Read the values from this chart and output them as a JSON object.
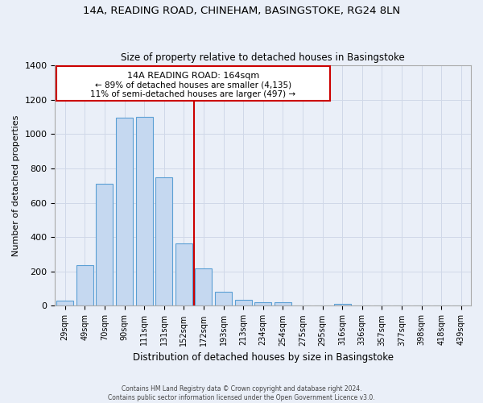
{
  "title_line1": "14A, READING ROAD, CHINEHAM, BASINGSTOKE, RG24 8LN",
  "title_line2": "Size of property relative to detached houses in Basingstoke",
  "xlabel": "Distribution of detached houses by size in Basingstoke",
  "ylabel": "Number of detached properties",
  "categories": [
    "29sqm",
    "49sqm",
    "70sqm",
    "90sqm",
    "111sqm",
    "131sqm",
    "152sqm",
    "172sqm",
    "193sqm",
    "213sqm",
    "234sqm",
    "254sqm",
    "275sqm",
    "295sqm",
    "316sqm",
    "336sqm",
    "357sqm",
    "377sqm",
    "398sqm",
    "418sqm",
    "439sqm"
  ],
  "values": [
    30,
    235,
    710,
    1095,
    1100,
    750,
    365,
    220,
    80,
    35,
    20,
    20,
    0,
    0,
    10,
    0,
    0,
    0,
    0,
    0,
    0
  ],
  "bar_color": "#c5d8f0",
  "bar_edge_color": "#5a9fd4",
  "grid_color": "#d0d8e8",
  "background_color": "#eaeff8",
  "red_line_index": 6.5,
  "annotation_text_line1": "14A READING ROAD: 164sqm",
  "annotation_text_line2": "← 89% of detached houses are smaller (4,135)",
  "annotation_text_line3": "11% of semi-detached houses are larger (497) →",
  "annotation_box_color": "#ffffff",
  "annotation_border_color": "#cc0000",
  "red_line_color": "#cc0000",
  "footer_line1": "Contains HM Land Registry data © Crown copyright and database right 2024.",
  "footer_line2": "Contains public sector information licensed under the Open Government Licence v3.0.",
  "ylim": [
    0,
    1400
  ],
  "yticks": [
    0,
    200,
    400,
    600,
    800,
    1000,
    1200,
    1400
  ]
}
